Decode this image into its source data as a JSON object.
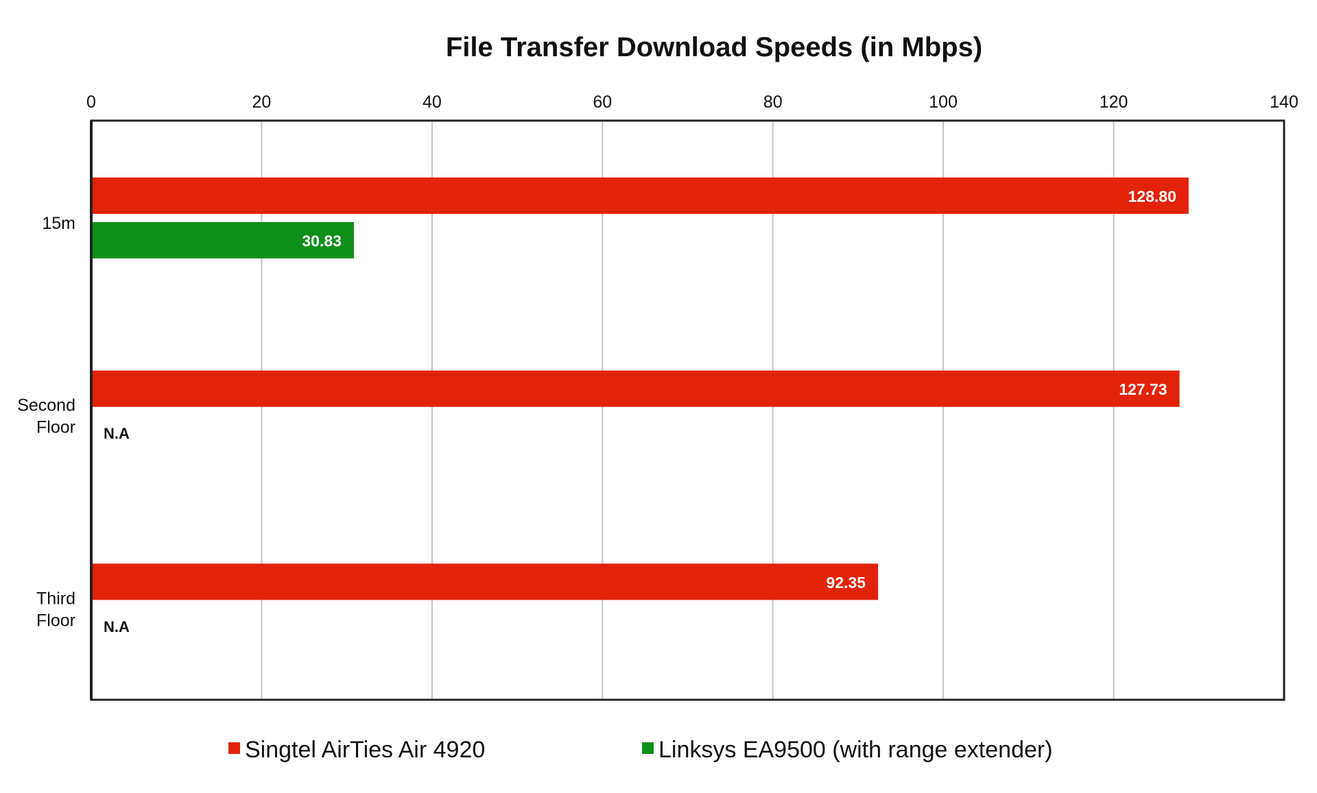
{
  "chart_data": {
    "type": "bar",
    "orientation": "horizontal",
    "title": "File Transfer Download Speeds (in Mbps)",
    "xlabel": "",
    "ylabel": "",
    "xlim": [
      0,
      140
    ],
    "x_ticks": [
      "0",
      "20",
      "40",
      "60",
      "80",
      "100",
      "120",
      "140"
    ],
    "x_axis_position": "top",
    "grid": true,
    "legend_position": "bottom",
    "categories": [
      "15m",
      "Second\nFloor",
      "Third\nFloor"
    ],
    "series": [
      {
        "name": "Singtel AirTies Air 4920",
        "color": "#e2230a",
        "values": [
          128.8,
          127.73,
          92.35
        ],
        "labels": [
          "128.80",
          "127.73",
          "92.35"
        ]
      },
      {
        "name": "Linksys EA9500 (with range extender)",
        "color": "#0e9018",
        "values": [
          30.83,
          null,
          null
        ],
        "labels": [
          "30.83",
          "N.A",
          "N.A"
        ]
      }
    ]
  }
}
